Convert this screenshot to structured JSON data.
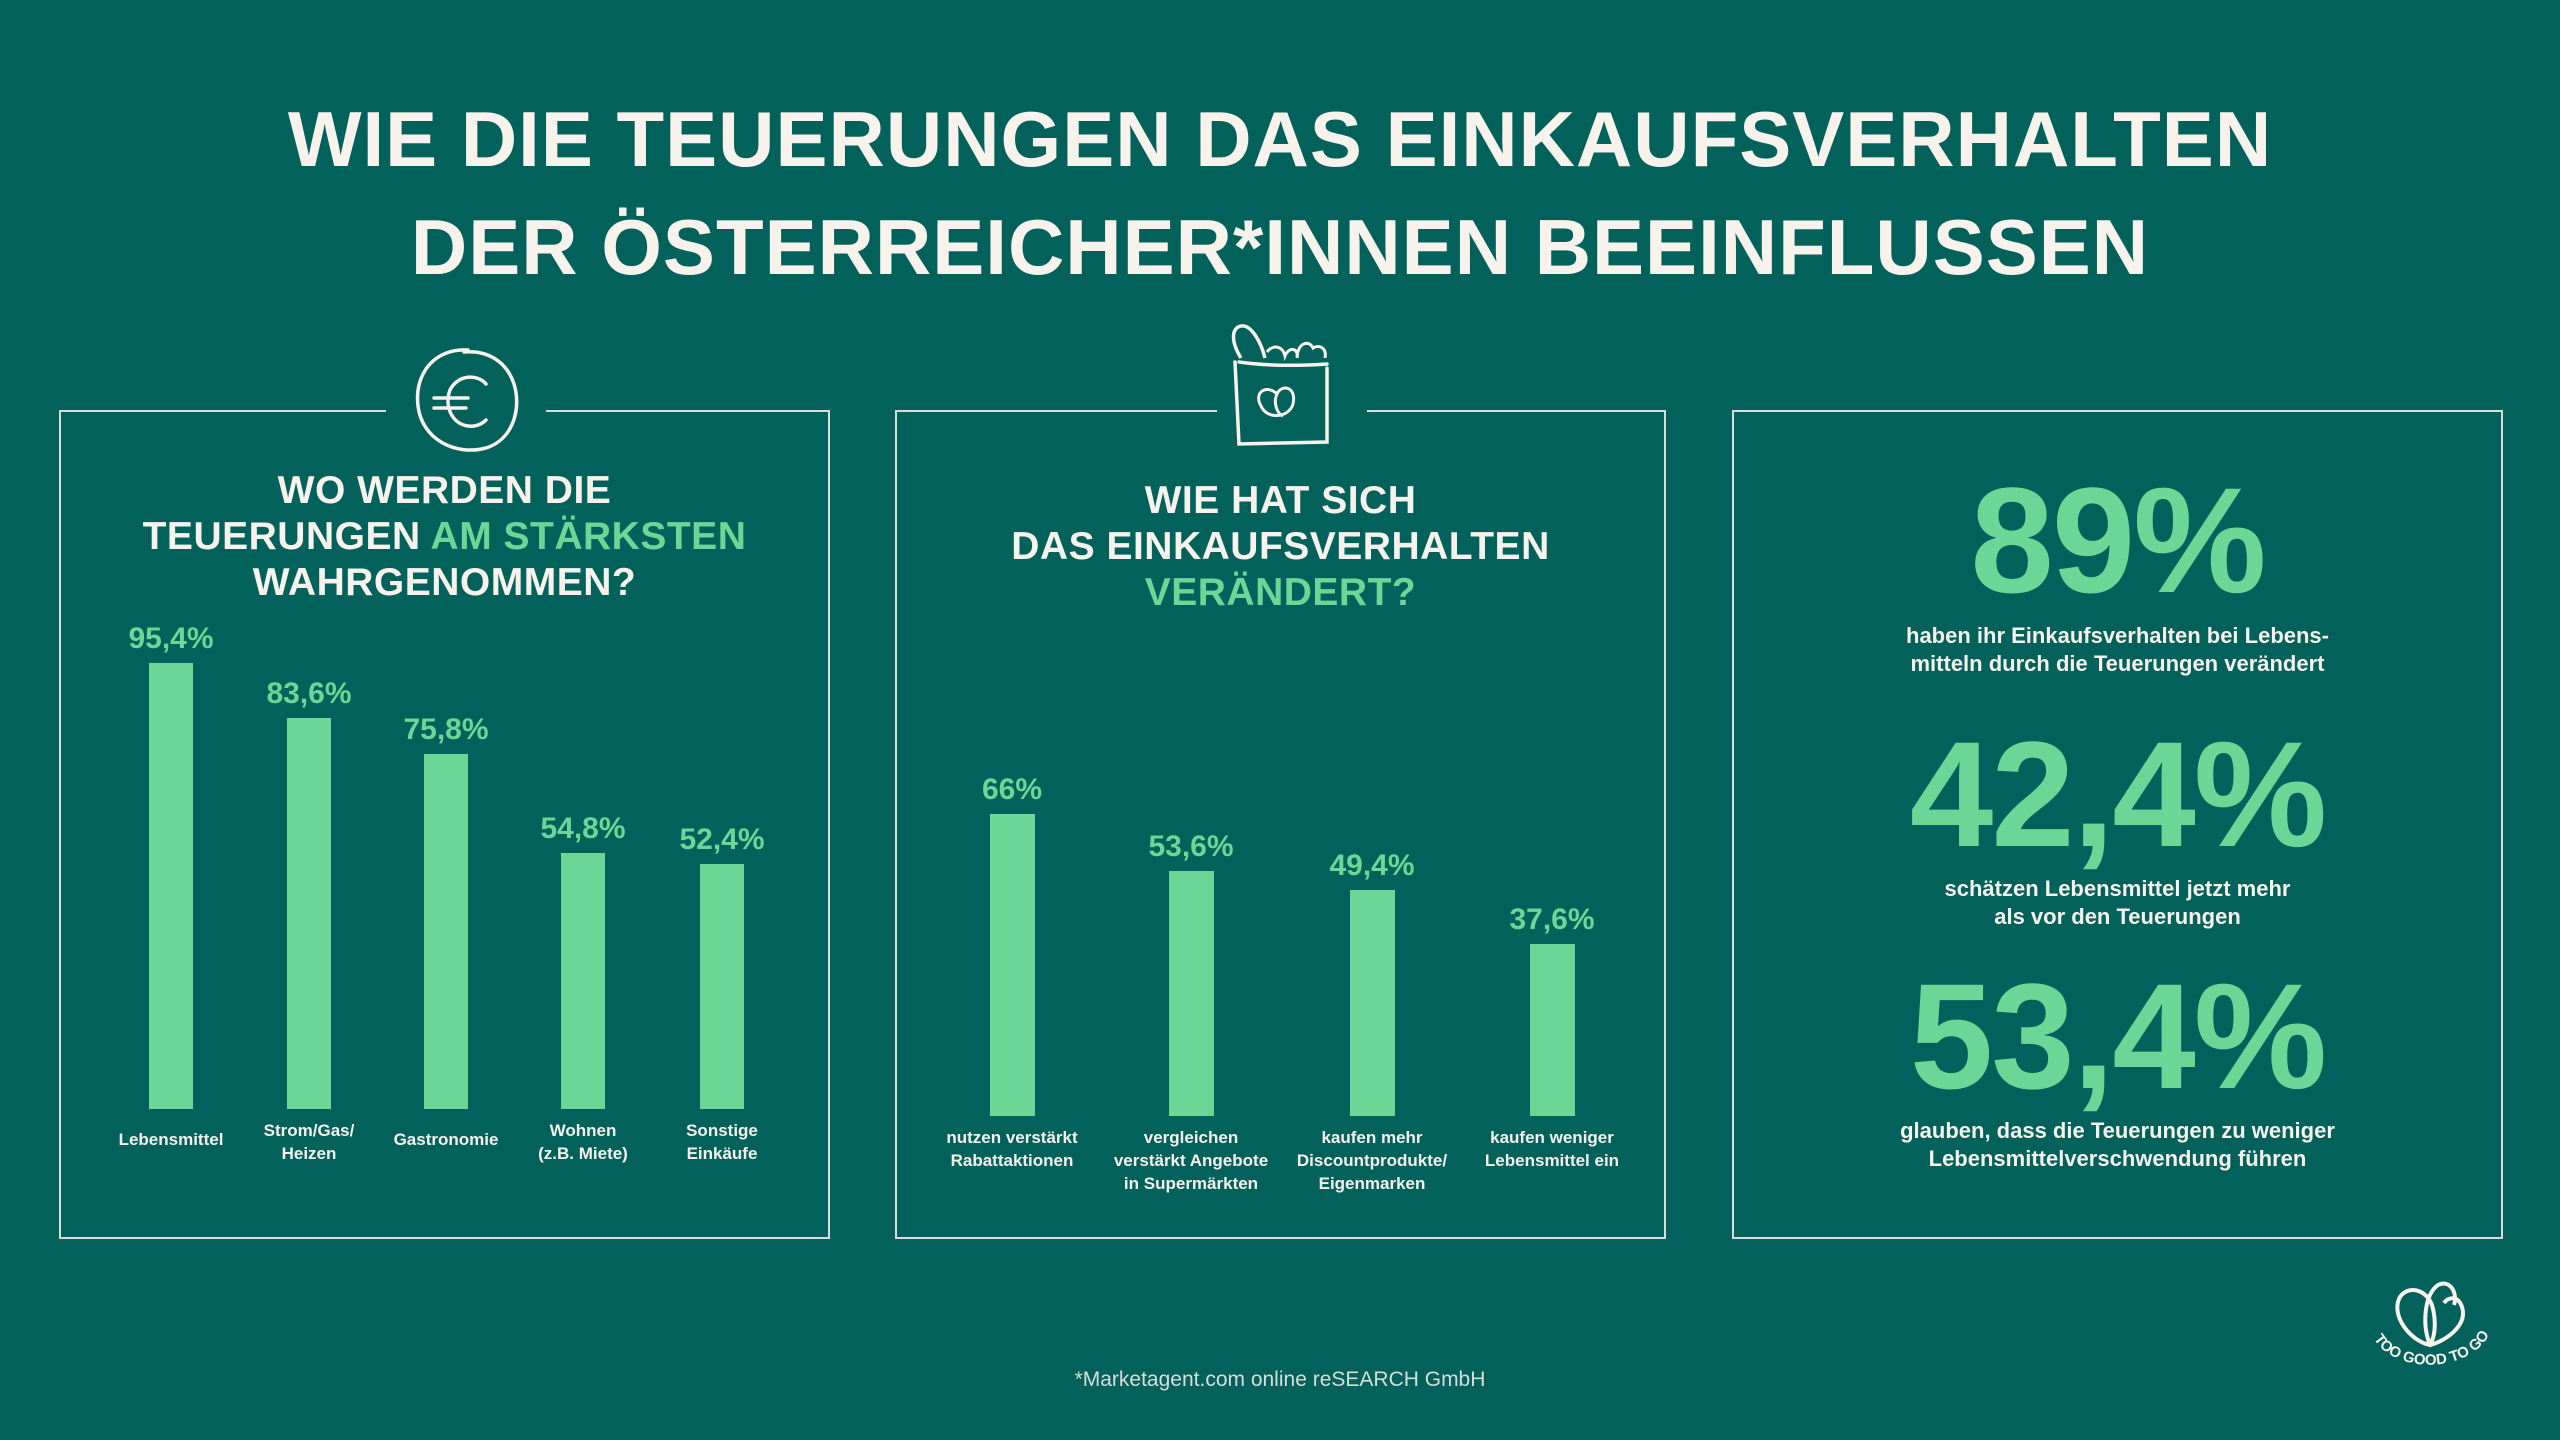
{
  "header": {
    "title_line1": "WIE DIE TEUERUNGEN  DAS EINKAUFSVERHALTEN",
    "title_line2": "DER ÖSTERREICHER*INNEN BEEINFLUSSEN"
  },
  "colors": {
    "background": "#02615b",
    "accent": "#6bd695",
    "text": "#f7f2ec"
  },
  "chart_data": [
    {
      "type": "bar",
      "title": "WO WERDEN DIE TEUERUNGEN AM STÄRKSTEN WAHRGENOMMEN?",
      "title_parts": {
        "line1": "WO WERDEN DIE",
        "line2a": "TEUERUNGEN ",
        "line2b": "AM STÄRKSTEN",
        "line3": "WAHRGENOMMEN?"
      },
      "icon": "euro-coin-icon",
      "categories": [
        "Lebensmittel",
        "Strom/Gas/\nHeizen",
        "Gastronomie",
        "Wohnen\n(z.B. Miete)",
        "Sonstige\nEinkäufe"
      ],
      "values": [
        95.4,
        83.6,
        75.8,
        54.8,
        52.4
      ],
      "data_labels": [
        "95,4%",
        "83,6%",
        "75,8%",
        "54,8%",
        "52,4%"
      ],
      "ylim": [
        0,
        100
      ],
      "grid": false
    },
    {
      "type": "bar",
      "title": "WIE HAT SICH DAS EINKAUFSVERHALTEN VERÄNDERT?",
      "title_parts": {
        "line1": "WIE HAT SICH",
        "line2": "DAS EINKAUFSVERHALTEN",
        "line3": "VERÄNDERT?"
      },
      "icon": "grocery-bag-icon",
      "categories": [
        "nutzen verstärkt\nRabattaktionen",
        "vergleichen\nverstärkt Angebote\nin Supermärkten",
        "kaufen mehr\nDiscountprodukte/\nEigenmarken",
        "kaufen weniger\nLebensmittel ein"
      ],
      "values": [
        66,
        53.6,
        49.4,
        37.6
      ],
      "data_labels": [
        "66%",
        "53,6%",
        "49,4%",
        "37,6%"
      ],
      "ylim": [
        0,
        100
      ],
      "grid": false
    }
  ],
  "stats": [
    {
      "value": "89%",
      "text": "haben ihr Einkaufsverhalten bei Lebens-\nmitteln durch die Teuerungen verändert"
    },
    {
      "value": "42,4%",
      "text": "schätzen Lebensmittel jetzt mehr\nals vor den Teuerungen"
    },
    {
      "value": "53,4%",
      "text": "glauben, dass die Teuerungen zu weniger\nLebensmittelverschwendung führen"
    }
  ],
  "footer": {
    "source": "*Marketagent.com online reSEARCH GmbH"
  },
  "logo": {
    "text": "TOO GOOD TO GO",
    "icon": "too-good-to-go-logo-icon"
  }
}
